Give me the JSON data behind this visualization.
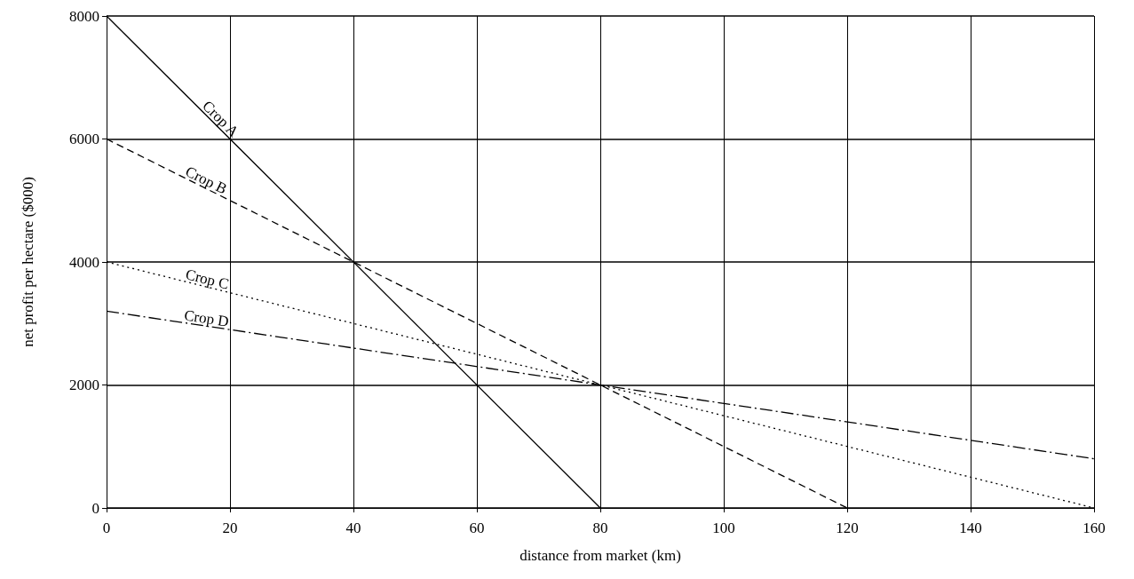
{
  "chart_data": {
    "type": "line",
    "xlabel": "distance from market (km)",
    "ylabel": "net profit per hectare ($000)",
    "xlim": [
      0,
      160
    ],
    "xticks": [
      0,
      20,
      40,
      60,
      80,
      100,
      120,
      140,
      160
    ],
    "ylim": [
      0,
      8000
    ],
    "yticks": [
      0,
      2000,
      4000,
      6000,
      8000
    ],
    "grid": true,
    "legend": false,
    "marker": "none",
    "series": [
      {
        "name": "Crop A",
        "color": "#000000",
        "line_style": "solid",
        "x": [
          0,
          80
        ],
        "values": [
          8000,
          0
        ]
      },
      {
        "name": "Crop B",
        "color": "#000000",
        "line_style": "dashed",
        "x": [
          0,
          120
        ],
        "values": [
          6000,
          0
        ]
      },
      {
        "name": "Crop C",
        "color": "#000000",
        "line_style": "dotted",
        "x": [
          0,
          160
        ],
        "values": [
          4000,
          0
        ]
      },
      {
        "name": "Crop D",
        "color": "#000000",
        "line_style": "dashdot",
        "x": [
          0,
          160
        ],
        "values": [
          3200,
          800
        ]
      }
    ]
  }
}
